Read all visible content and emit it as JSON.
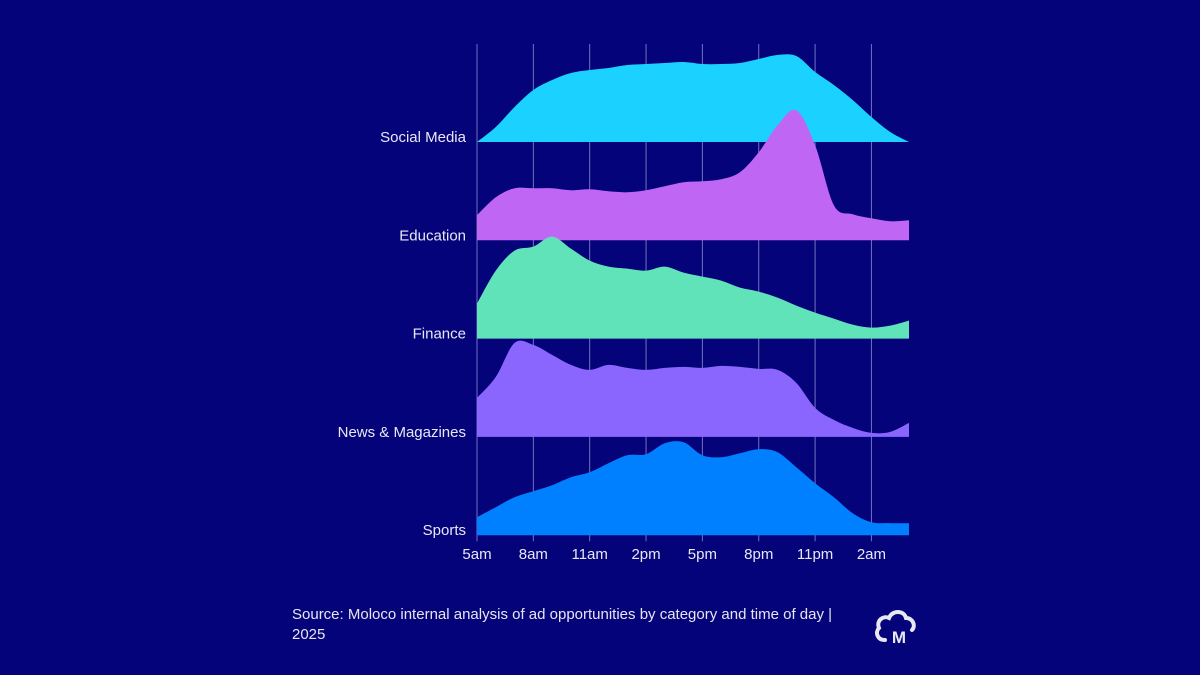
{
  "chart_data": {
    "type": "ridgeline",
    "title": "",
    "xlabel": "",
    "ylabel": "",
    "x_unit": "hour of day (5 = 5am, 24 = midnight, 28 = 4am next day)",
    "x": [
      5,
      6,
      7,
      8,
      9,
      10,
      11,
      12,
      13,
      14,
      15,
      16,
      17,
      18,
      19,
      20,
      21,
      22,
      23,
      24,
      25,
      26,
      27,
      28
    ],
    "xlim": [
      5,
      28
    ],
    "x_ticks": [
      5,
      8,
      11,
      14,
      17,
      20,
      23,
      26
    ],
    "x_tick_labels": [
      "5am",
      "8am",
      "11am",
      "2pm",
      "5pm",
      "8pm",
      "11pm",
      "2am"
    ],
    "grid": "vertical",
    "value_unit": "relative ad opportunity volume (arbitrary units)",
    "series": [
      {
        "name": "Social Media",
        "color": "#1ad1ff",
        "values": [
          0,
          15,
          35,
          52,
          62,
          69,
          72,
          74,
          77,
          78,
          79,
          80,
          78,
          78,
          79,
          83,
          87,
          86,
          70,
          57,
          42,
          25,
          10,
          0
        ]
      },
      {
        "name": "Education",
        "color": "#bf66f5",
        "values": [
          25,
          43,
          52,
          52,
          52,
          50,
          51,
          49,
          48,
          50,
          54,
          58,
          59,
          61,
          68,
          88,
          115,
          130,
          95,
          35,
          26,
          22,
          19,
          20
        ]
      },
      {
        "name": "Finance",
        "color": "#61e3ba",
        "values": [
          35,
          68,
          88,
          92,
          102,
          90,
          78,
          72,
          70,
          68,
          72,
          66,
          62,
          58,
          51,
          47,
          41,
          33,
          26,
          20,
          14,
          11,
          13,
          18
        ]
      },
      {
        "name": "News & Magazines",
        "color": "#8a66ff",
        "values": [
          39,
          60,
          94,
          92,
          82,
          72,
          67,
          72,
          69,
          67,
          69,
          70,
          69,
          71,
          70,
          68,
          67,
          54,
          29,
          17,
          9,
          4,
          5,
          14
        ]
      },
      {
        "name": "Sports",
        "color": "#0080ff",
        "values": [
          18,
          28,
          38,
          44,
          50,
          58,
          63,
          72,
          80,
          81,
          92,
          93,
          80,
          78,
          82,
          86,
          83,
          68,
          52,
          38,
          22,
          13,
          12,
          12
        ]
      }
    ]
  },
  "source": "Source: Moloco internal analysis of ad opportunities by category and time of day | 2025",
  "logo": {
    "icon": "moloco-cloud-m-logo",
    "text": "M"
  },
  "colors": {
    "background": "#04037a",
    "grid": "#8f8fd0"
  }
}
